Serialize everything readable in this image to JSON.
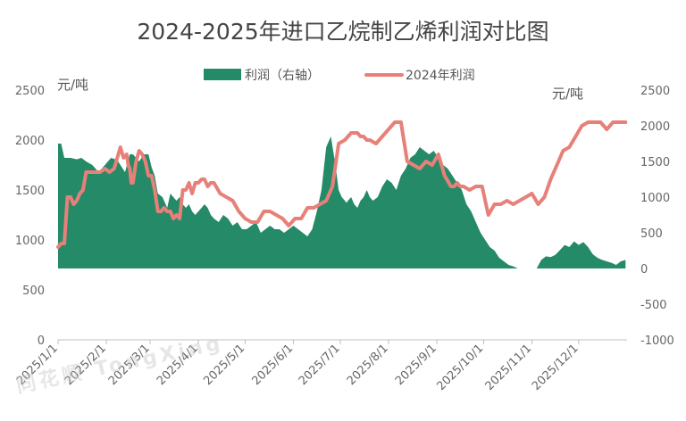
{
  "chart_data": {
    "type": "area",
    "title": "2024-2025年进口乙烷制乙烯利润对比图",
    "left_axis_unit": "元/吨",
    "right_axis_unit": "元/吨",
    "left_ylim": [
      0,
      2500
    ],
    "left_yticks": [
      0,
      500,
      1000,
      1500,
      2000,
      2500
    ],
    "right_ylim": [
      -1000,
      2500
    ],
    "right_yticks": [
      -1000,
      -500,
      0,
      500,
      1000,
      1500,
      2000,
      2500
    ],
    "x_categories": [
      "2025/1/1",
      "2025/2/1",
      "2025/3/1",
      "2025/4/1",
      "2025/5/1",
      "2025/6/1",
      "2025/7/1",
      "2025/8/1",
      "2025/9/1",
      "2025/10/1",
      "2025/11/1",
      "2025/12/1"
    ],
    "legend_position": "top",
    "grid": false,
    "series": [
      {
        "name": "利润（右轴）",
        "type": "area",
        "axis": "right",
        "color": "#248a68",
        "x": [
          0,
          2,
          4,
          5,
          8,
          12,
          15,
          18,
          22,
          26,
          30,
          34,
          38,
          40,
          43,
          46,
          48,
          50,
          52,
          55,
          58,
          60,
          62,
          64,
          67,
          70,
          72,
          74,
          76,
          78,
          80,
          82,
          84,
          86,
          88,
          90,
          92,
          94,
          96,
          98,
          100,
          103,
          106,
          109,
          112,
          115,
          118,
          121,
          124,
          127,
          130,
          133,
          136,
          139,
          142,
          145,
          148,
          151,
          154,
          157,
          160,
          163,
          166,
          169,
          172,
          175,
          178,
          180,
          182,
          184,
          185,
          186,
          188,
          190,
          192,
          194,
          196,
          198,
          200,
          202,
          205,
          208,
          211,
          214,
          217,
          220,
          223,
          226,
          229,
          232,
          235,
          238,
          241,
          244,
          247,
          250,
          253,
          256,
          259,
          262,
          265,
          268,
          271,
          274,
          277,
          280,
          283,
          286,
          289,
          292,
          295,
          298,
          301,
          304,
          307,
          310,
          313,
          316,
          319,
          322,
          325,
          328,
          331,
          334,
          337,
          340,
          343,
          346,
          349,
          352,
          355,
          358,
          361,
          364
        ],
        "values": [
          1750,
          1750,
          1550,
          1550,
          1550,
          1530,
          1550,
          1500,
          1450,
          1350,
          1450,
          1550,
          1520,
          1450,
          1350,
          1600,
          1600,
          1550,
          1500,
          1600,
          1600,
          1420,
          1300,
          1050,
          1000,
          850,
          1050,
          1000,
          950,
          1000,
          900,
          850,
          900,
          800,
          750,
          800,
          850,
          900,
          850,
          750,
          700,
          650,
          750,
          700,
          600,
          650,
          550,
          550,
          600,
          650,
          500,
          550,
          600,
          550,
          550,
          500,
          550,
          600,
          550,
          500,
          450,
          550,
          800,
          1100,
          1700,
          1850,
          1450,
          1100,
          1000,
          950,
          920,
          950,
          1000,
          900,
          850,
          950,
          1000,
          1100,
          1000,
          950,
          1000,
          1150,
          1250,
          1200,
          1100,
          1300,
          1400,
          1550,
          1600,
          1700,
          1650,
          1600,
          1650,
          1550,
          1450,
          1400,
          1300,
          1200,
          1100,
          900,
          800,
          650,
          500,
          400,
          300,
          250,
          150,
          100,
          50,
          30,
          0,
          0,
          0,
          0,
          0,
          120,
          170,
          160,
          190,
          260,
          330,
          300,
          380,
          330,
          370,
          300,
          200,
          150,
          120,
          100,
          80,
          50,
          100,
          120
        ]
      },
      {
        "name": "2024年利润",
        "type": "line",
        "axis": "right",
        "color": "#e8807a",
        "x": [
          0,
          2,
          4,
          6,
          8,
          9,
          10,
          12,
          14,
          16,
          18,
          20,
          22,
          24,
          27,
          30,
          33,
          36,
          40,
          42,
          44,
          45,
          46,
          47,
          48,
          50,
          52,
          54,
          56,
          58,
          60,
          62,
          64,
          66,
          68,
          70,
          72,
          74,
          76,
          78,
          80,
          82,
          84,
          86,
          88,
          90,
          92,
          94,
          96,
          98,
          100,
          104,
          108,
          112,
          116,
          120,
          124,
          128,
          132,
          136,
          140,
          144,
          148,
          152,
          156,
          160,
          164,
          168,
          172,
          176,
          180,
          184,
          188,
          192,
          194,
          196,
          198,
          200,
          204,
          208,
          212,
          216,
          220,
          224,
          228,
          232,
          236,
          240,
          244,
          248,
          252,
          254,
          256,
          258,
          260,
          264,
          268,
          272,
          276,
          280,
          284,
          288,
          292,
          296,
          300,
          304,
          308,
          312,
          316,
          320,
          324,
          328,
          332,
          336,
          340,
          344,
          348,
          352,
          356,
          360,
          364
        ],
        "values": [
          300,
          350,
          350,
          1000,
          1000,
          950,
          900,
          950,
          1050,
          1100,
          1350,
          1350,
          1350,
          1350,
          1350,
          1400,
          1350,
          1400,
          1700,
          1550,
          1600,
          1450,
          1400,
          1200,
          1200,
          1500,
          1650,
          1600,
          1500,
          1300,
          1300,
          1100,
          800,
          800,
          850,
          800,
          800,
          700,
          750,
          700,
          1100,
          1100,
          1200,
          1050,
          1200,
          1200,
          1250,
          1250,
          1150,
          1200,
          1200,
          1050,
          1000,
          950,
          800,
          700,
          650,
          650,
          800,
          800,
          750,
          700,
          600,
          700,
          700,
          850,
          850,
          900,
          950,
          1150,
          1750,
          1800,
          1900,
          1900,
          1850,
          1850,
          1800,
          1800,
          1750,
          1850,
          1950,
          2050,
          2050,
          1500,
          1450,
          1400,
          1500,
          1450,
          1600,
          1300,
          1150,
          1150,
          1200,
          1150,
          1150,
          1100,
          1150,
          1150,
          750,
          900,
          900,
          950,
          900,
          950,
          1000,
          1050,
          900,
          1000,
          1250,
          1450,
          1650,
          1700,
          1850,
          2000,
          2050,
          2050,
          2050,
          1950,
          2050,
          2050,
          2050
        ]
      }
    ],
    "watermark": "同花顺 TongXing"
  }
}
